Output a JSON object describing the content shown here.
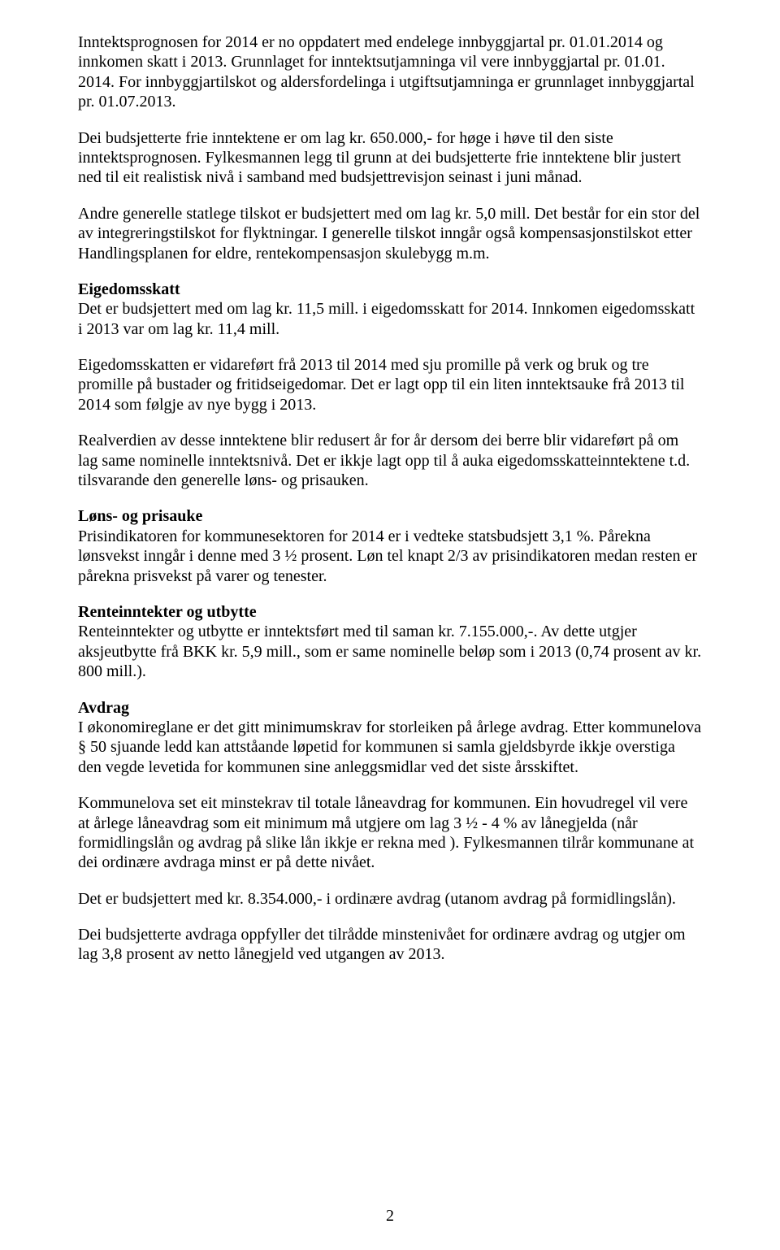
{
  "paragraphs": {
    "p1": "Inntektsprognosen for 2014 er no oppdatert med endelege innbyggjartal pr. 01.01.2014 og innkomen skatt i 2013. Grunnlaget for inntektsutjamninga vil vere innbyggjartal pr. 01.01. 2014. For innbyggjartilskot og aldersfordelinga i utgiftsutjamninga er grunnlaget innbyggjartal pr. 01.07.2013.",
    "p2": "Dei budsjetterte frie inntektene er om lag kr. 650.000,- for høge i høve til den siste inntektsprognosen. Fylkesmannen legg til grunn at dei budsjetterte frie inntektene blir justert ned til eit realistisk nivå i samband med budsjettrevisjon seinast i juni månad.",
    "p3": "Andre generelle statlege tilskot er budsjettert med om lag kr. 5,0 mill. Det består for ein stor del av integreringstilskot for flyktningar. I generelle tilskot inngår også kompensasjonstilskot etter Handlingsplanen for eldre, rentekompensasjon skulebygg m.m.",
    "h1": "Eigedomsskatt",
    "p4": "Det er budsjettert med om lag kr. 11,5 mill. i eigedomsskatt for 2014. Innkomen eigedomsskatt i 2013 var om lag kr. 11,4 mill.",
    "p5": "Eigedomsskatten er vidareført frå 2013 til 2014 med sju promille på verk og bruk og tre promille på bustader og fritidseigedomar. Det er lagt opp til ein liten inntektsauke frå 2013 til 2014 som følgje av nye bygg i 2013.",
    "p6": "Realverdien av desse inntektene blir redusert år for år dersom dei berre blir vidareført på om lag same nominelle inntektsnivå. Det er ikkje lagt opp til å auka eigedomsskatteinntektene t.d. tilsvarande den generelle løns- og prisauken.",
    "h2": "Løns- og prisauke",
    "p7": "Prisindikatoren for kommunesektoren for 2014 er i vedteke statsbudsjett 3,1 %. Pårekna lønsvekst inngår i denne med 3 ½ prosent. Løn tel knapt 2/3 av prisindikatoren medan resten er pårekna prisvekst på varer og tenester.",
    "h3": "Renteinntekter og utbytte",
    "p8": "Renteinntekter og utbytte er inntektsført med til saman kr. 7.155.000,-. Av dette utgjer aksjeutbytte frå BKK kr. 5,9 mill., som er same nominelle beløp som i 2013 (0,74 prosent av kr. 800 mill.).",
    "h4": "Avdrag",
    "p9": "I økonomireglane er det gitt minimumskrav for storleiken på årlege avdrag. Etter kommunelova § 50 sjuande ledd kan attståande løpetid for kommunen si samla gjeldsbyrde ikkje overstiga den vegde levetida for kommunen sine anleggsmidlar ved det siste årsskiftet.",
    "p10": "Kommunelova set eit minstekrav til totale låneavdrag for kommunen. Ein hovudregel vil vere at årlege låneavdrag som eit minimum må utgjere om lag 3 ½ - 4 % av lånegjelda (når formidlingslån og avdrag på slike lån ikkje er rekna med ). Fylkesmannen tilrår kommunane at dei ordinære avdraga minst er på dette nivået.",
    "p11": "Det er budsjettert med kr. 8.354.000,- i ordinære avdrag  (utanom avdrag på  formidlingslån).",
    "p12": "Dei budsjetterte avdraga oppfyller det tilrådde minstenivået for ordinære avdrag og utgjer om lag 3,8 prosent av netto lånegjeld ved utgangen av 2013."
  },
  "pageNumber": "2"
}
